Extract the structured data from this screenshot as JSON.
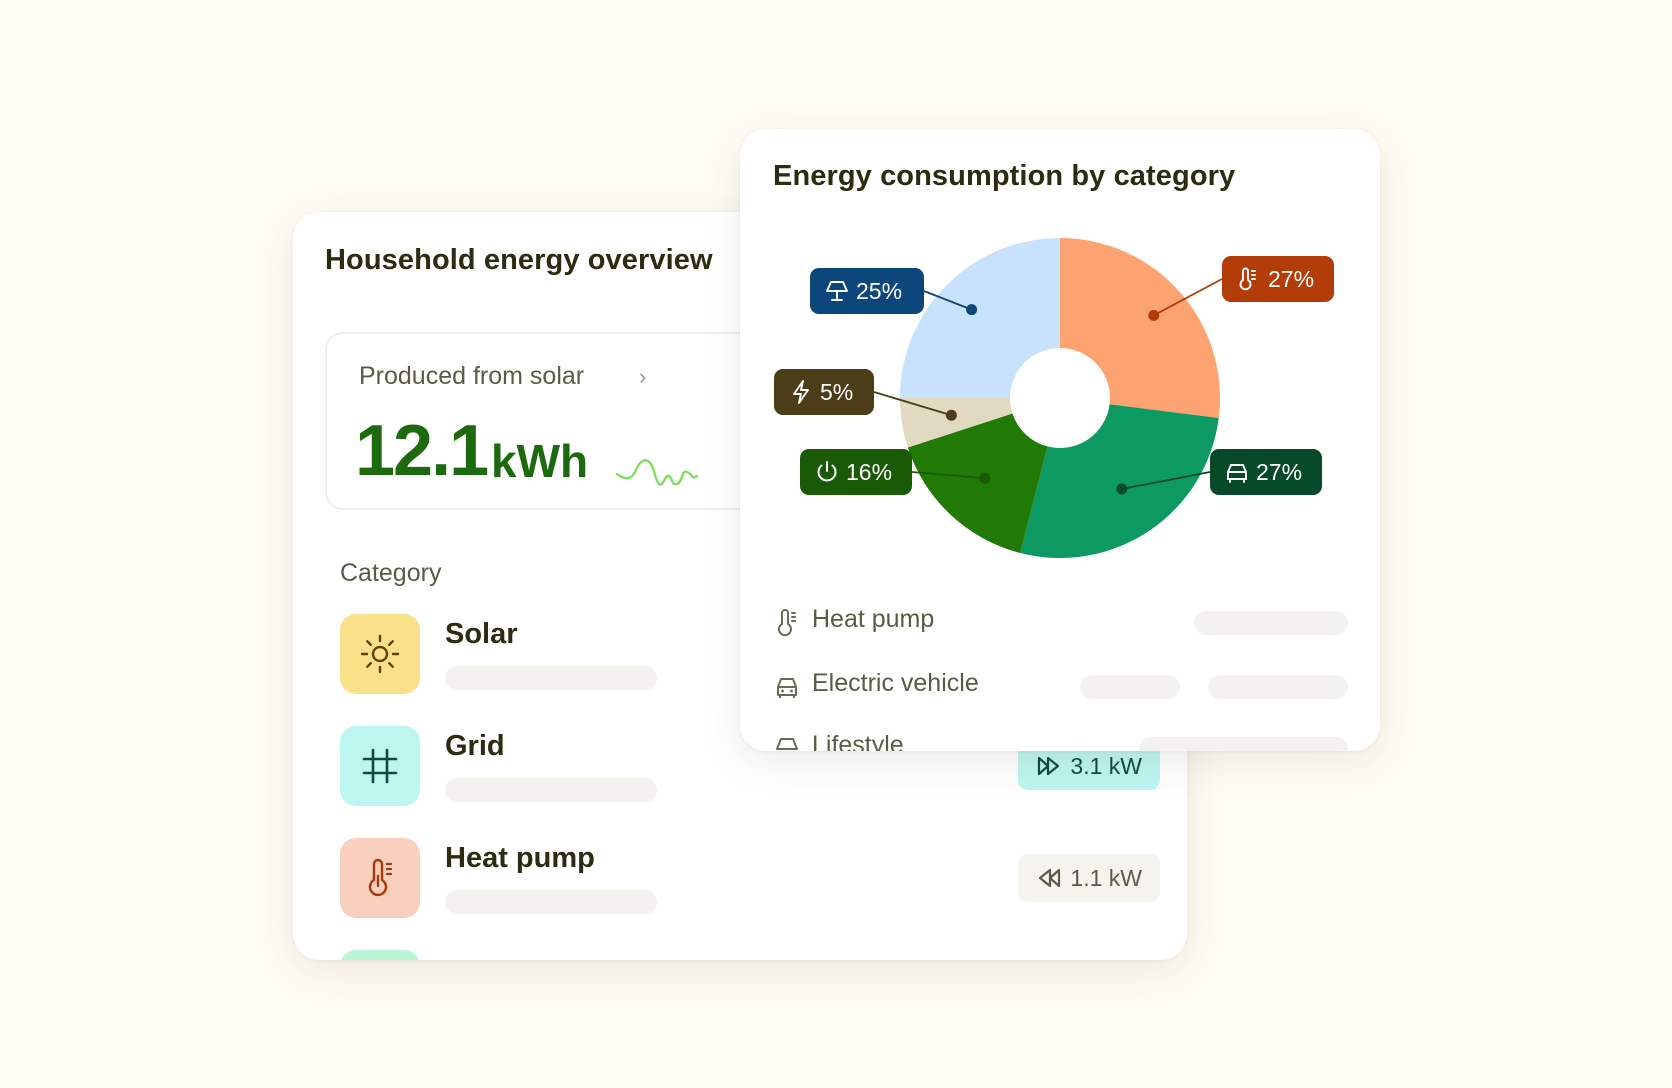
{
  "overview": {
    "title": "Household energy overview",
    "solar": {
      "label": "Produced from solar",
      "chevron": "›",
      "value": "12.1",
      "unit": "kWh"
    },
    "category_heading": "Category",
    "categories": [
      {
        "name": "Solar",
        "icon": "sun-icon",
        "color": "#fbe08a"
      },
      {
        "name": "Grid",
        "icon": "grid-icon",
        "color": "#bdf6ef",
        "pill": "3.1 kW",
        "pill_icon": "export-icon"
      },
      {
        "name": "Heat pump",
        "icon": "thermometer-icon",
        "color": "#f8d0bd",
        "pill": "1.1 kW",
        "pill_icon": "import-icon"
      }
    ]
  },
  "consumption": {
    "title": "Energy consumption by category",
    "legend": [
      {
        "name": "Heat pump",
        "icon": "thermometer-icon"
      },
      {
        "name": "Electric vehicle",
        "icon": "car-icon"
      },
      {
        "name": "Lifestyle",
        "icon": "lamp-icon"
      }
    ]
  },
  "chart_data": {
    "type": "pie",
    "title": "Energy consumption by category",
    "donut": true,
    "slices": [
      {
        "value": 27,
        "label": "27%",
        "icon": "thermometer-icon",
        "color": "#fda372",
        "badge_color": "#b23d08"
      },
      {
        "value": 27,
        "label": "27%",
        "icon": "car-icon",
        "color": "#0d9a62",
        "badge_color": "#064a2a"
      },
      {
        "value": 16,
        "label": "16%",
        "icon": "power-icon",
        "color": "#217a05",
        "badge_color": "#1a5a07"
      },
      {
        "value": 5,
        "label": "5%",
        "icon": "bolt-icon",
        "color": "#e2dac0",
        "badge_color": "#4a3d17"
      },
      {
        "value": 25,
        "label": "25%",
        "icon": "lamp-icon",
        "color": "#c8e2fc",
        "badge_color": "#0d467a"
      }
    ]
  }
}
